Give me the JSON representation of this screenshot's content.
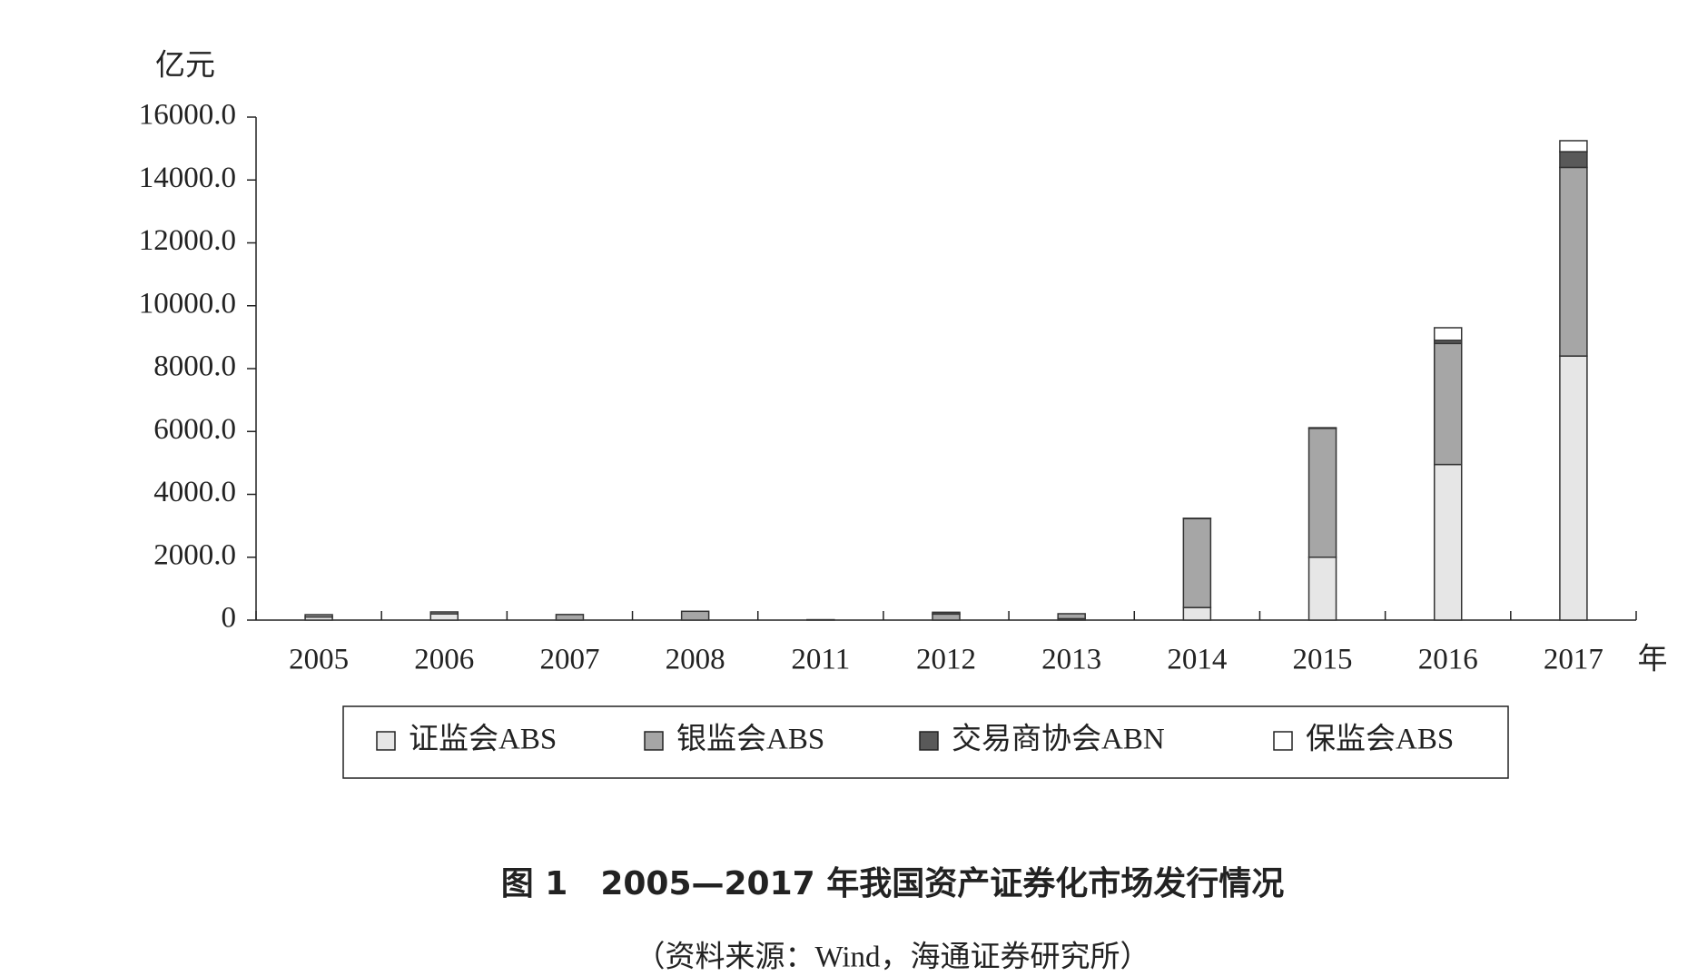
{
  "chart_data": {
    "type": "stacked_bar",
    "title": "图 1　2005—2017 年我国资产证券化市场发行情况",
    "subtitle": "（资料来源：Wind，海通证券研究所）",
    "y_label": "亿元",
    "x_label": "年",
    "categories": [
      "2005",
      "2006",
      "2007",
      "2008",
      "2011",
      "2012",
      "2013",
      "2014",
      "2015",
      "2016",
      "2017"
    ],
    "series": [
      {
        "name": "证监会ABS",
        "color": "#e6e6e6",
        "values": [
          100,
          200,
          0,
          0,
          0,
          0,
          45,
          400,
          2000,
          4950,
          8400
        ]
      },
      {
        "name": "银监会ABS",
        "color": "#a6a6a6",
        "values": [
          72,
          60,
          178,
          280,
          13,
          193,
          158,
          2830,
          4100,
          3850,
          6000
        ]
      },
      {
        "name": "交易商协会ABN",
        "color": "#595959",
        "values": [
          0,
          0,
          0,
          0,
          0,
          57,
          0,
          9,
          20,
          100,
          500
        ]
      },
      {
        "name": "保监会ABS",
        "color": "#ffffff",
        "values": [
          0,
          0,
          0,
          0,
          0,
          0,
          0,
          0,
          0,
          400,
          350
        ]
      }
    ],
    "ylim": [
      0,
      16000
    ],
    "yticks": [
      0,
      {
        "value": 2000,
        "label": "2000.0"
      },
      {
        "value": 4000,
        "label": "4000.0"
      },
      {
        "value": 6000,
        "label": "6000.0"
      },
      {
        "value": 8000,
        "label": "8000.0"
      },
      {
        "value": 10000,
        "label": "10000.0"
      },
      {
        "value": 12000,
        "label": "12000.0"
      },
      {
        "value": 14000,
        "label": "14000.0"
      },
      {
        "value": 16000,
        "label": "16000.0"
      }
    ],
    "legend": "bottom"
  }
}
